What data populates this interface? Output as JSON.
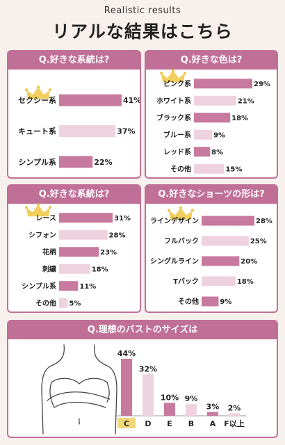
{
  "header": {
    "subtitle": "Realistic results",
    "title": "リアルな結果はこちら"
  },
  "colors": {
    "accent": "#c06f96",
    "bar_dark": "#c7799e",
    "bar_light": "#efd2df",
    "crown": "#f0c542"
  },
  "chart_data": [
    {
      "type": "bar",
      "title": "Q.好きな系統は?",
      "categories": [
        "セクシー系",
        "キュート系",
        "シンプル系"
      ],
      "values": [
        41,
        37,
        22
      ],
      "value_labels": [
        "41%",
        "37%",
        "22%"
      ],
      "crown_on": "セクシー系"
    },
    {
      "type": "bar",
      "title": "Q.好きな色は?",
      "categories": [
        "ピンク系",
        "ホワイト系",
        "ブラック系",
        "ブルー系",
        "レッド系",
        "その他"
      ],
      "values": [
        29,
        21,
        18,
        9,
        8,
        15
      ],
      "value_labels": [
        "29%",
        "21%",
        "18%",
        "9%",
        "8%",
        "15%"
      ],
      "crown_on": "ピンク系"
    },
    {
      "type": "bar",
      "title": "Q.好きな系統は?",
      "categories": [
        "レース",
        "シフォン",
        "花柄",
        "刺繍",
        "シンプル系",
        "その他"
      ],
      "values": [
        31,
        28,
        23,
        18,
        11,
        5
      ],
      "value_labels": [
        "31%",
        "28%",
        "23%",
        "18%",
        "11%",
        "5%"
      ],
      "crown_on": "レース"
    },
    {
      "type": "bar",
      "title": "Q.好きなショーツの形は?",
      "categories": [
        "ラインデザイン",
        "フルバック",
        "シングルライン",
        "Tバック",
        "その他"
      ],
      "values": [
        28,
        25,
        20,
        18,
        9
      ],
      "value_labels": [
        "28%",
        "25%",
        "20%",
        "18%",
        "9%"
      ],
      "crown_on": "ラインデザイン"
    },
    {
      "type": "bar",
      "title": "Q.理想のバストのサイズは",
      "categories": [
        "C",
        "D",
        "E",
        "B",
        "A",
        "F以上"
      ],
      "values": [
        44,
        32,
        10,
        9,
        3,
        2
      ],
      "value_labels": [
        "44%",
        "32%",
        "10%",
        "9%",
        "3%",
        "2%"
      ]
    }
  ]
}
